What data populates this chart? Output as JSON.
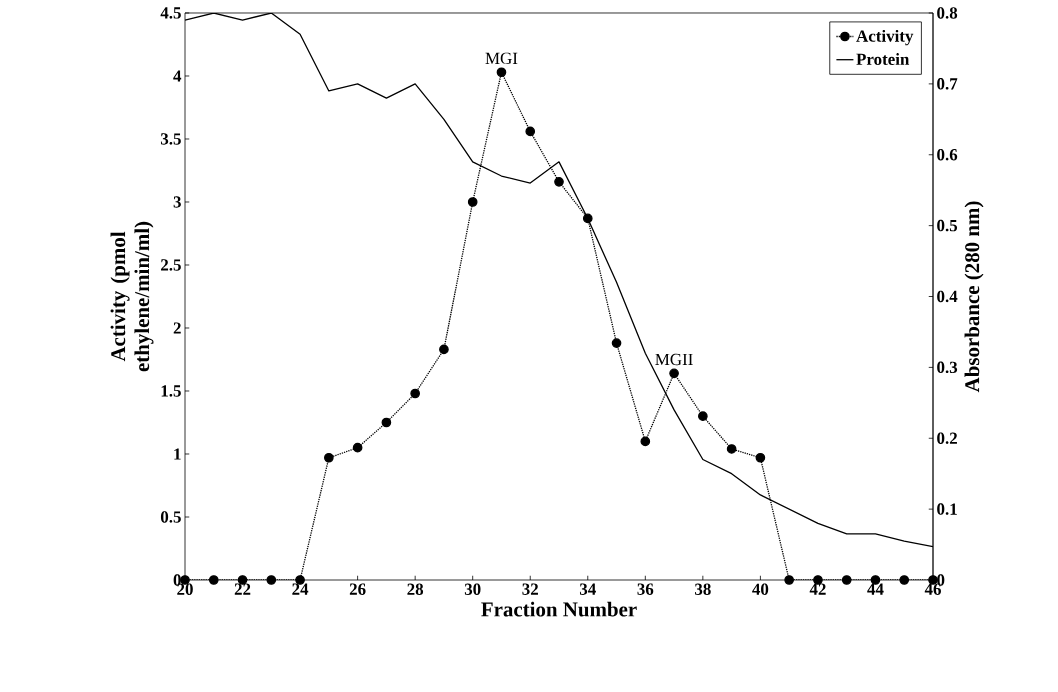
{
  "chart_data": {
    "type": "line",
    "xlabel": "Fraction Number",
    "ylabel": "Activity (pmol ethylene/min/ml)",
    "y2label": "Absorbance (280 nm)",
    "x": [
      20,
      21,
      22,
      23,
      24,
      25,
      26,
      27,
      28,
      29,
      30,
      31,
      32,
      33,
      34,
      35,
      36,
      37,
      38,
      39,
      40,
      41,
      42,
      43,
      44,
      45,
      46
    ],
    "series": [
      {
        "name": "Activity",
        "color": "#000000",
        "marker": "circle",
        "line_style": "dotted",
        "values": [
          0,
          0,
          0,
          0,
          0,
          0.97,
          1.05,
          1.25,
          1.48,
          1.83,
          3.0,
          4.03,
          3.56,
          3.16,
          2.87,
          1.88,
          1.1,
          1.64,
          1.3,
          1.04,
          0.97,
          0,
          0,
          0,
          0,
          0,
          0
        ]
      },
      {
        "name": "Protein",
        "color": "#000000",
        "marker": "none",
        "line_style": "solid",
        "axis": "y2",
        "values": [
          0.79,
          0.8,
          0.79,
          0.8,
          0.77,
          0.69,
          0.7,
          0.68,
          0.7,
          0.65,
          0.59,
          0.57,
          0.56,
          0.59,
          0.51,
          0.42,
          0.32,
          0.24,
          0.17,
          0.15,
          0.12,
          0.1,
          0.08,
          0.065,
          0.065,
          0.055,
          0.047
        ]
      }
    ],
    "annotations": [
      {
        "text": "MGI",
        "x": 31,
        "y": 4.03
      },
      {
        "text": "MGII",
        "x": 37,
        "y": 1.64
      }
    ],
    "xlim": [
      20,
      46
    ],
    "xticks": [
      20,
      22,
      24,
      26,
      28,
      30,
      32,
      34,
      36,
      38,
      40,
      42,
      44,
      46
    ],
    "ylim": [
      0,
      4.5
    ],
    "yticks": [
      0,
      0.5,
      1,
      1.5,
      2,
      2.5,
      3,
      3.5,
      4,
      4.5
    ],
    "y2lim": [
      0,
      0.8
    ],
    "y2ticks": [
      0,
      0.1,
      0.2,
      0.3,
      0.4,
      0.5,
      0.6,
      0.7,
      0.8
    ],
    "legend": "top right",
    "grid": false
  }
}
